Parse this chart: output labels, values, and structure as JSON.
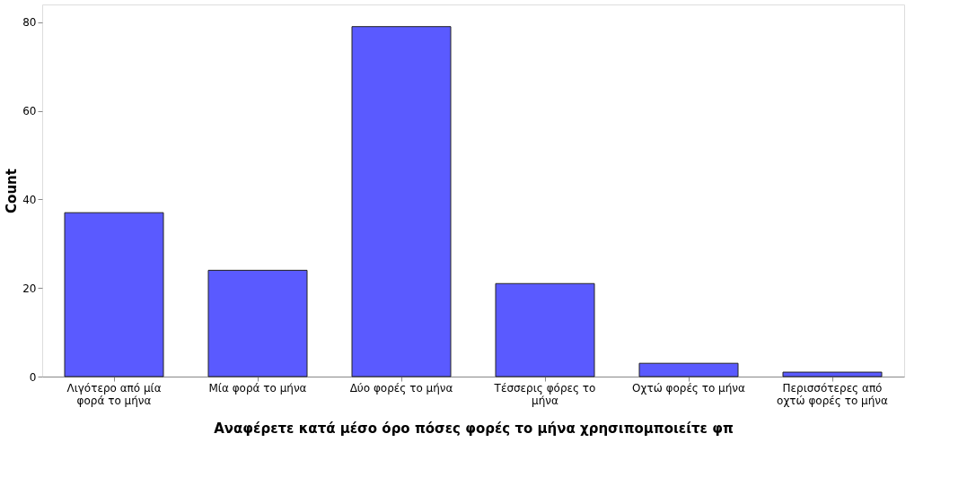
{
  "chart_data": {
    "type": "bar",
    "xlabel": "Αναφέρετε κατά μέσο όρο πόσες φορές το μήνα χρησιπομποιείτε φπ",
    "ylabel": "Count",
    "categories": [
      "Λιγότερο από μία φορά το μήνα",
      "Μία φορά το μήνα",
      "Δύο φορές το μήνα",
      "Τέσσερις φόρες το μήνα",
      "Οχτώ φορές το μήνα",
      "Περισσότερες από οχτώ φορές το μήνα"
    ],
    "values": [
      37,
      24,
      79,
      21,
      3,
      1
    ],
    "color": "#5a5aff",
    "ylim": [
      0,
      84
    ],
    "yticks": [
      0,
      20,
      40,
      60,
      80
    ],
    "grid": false
  }
}
